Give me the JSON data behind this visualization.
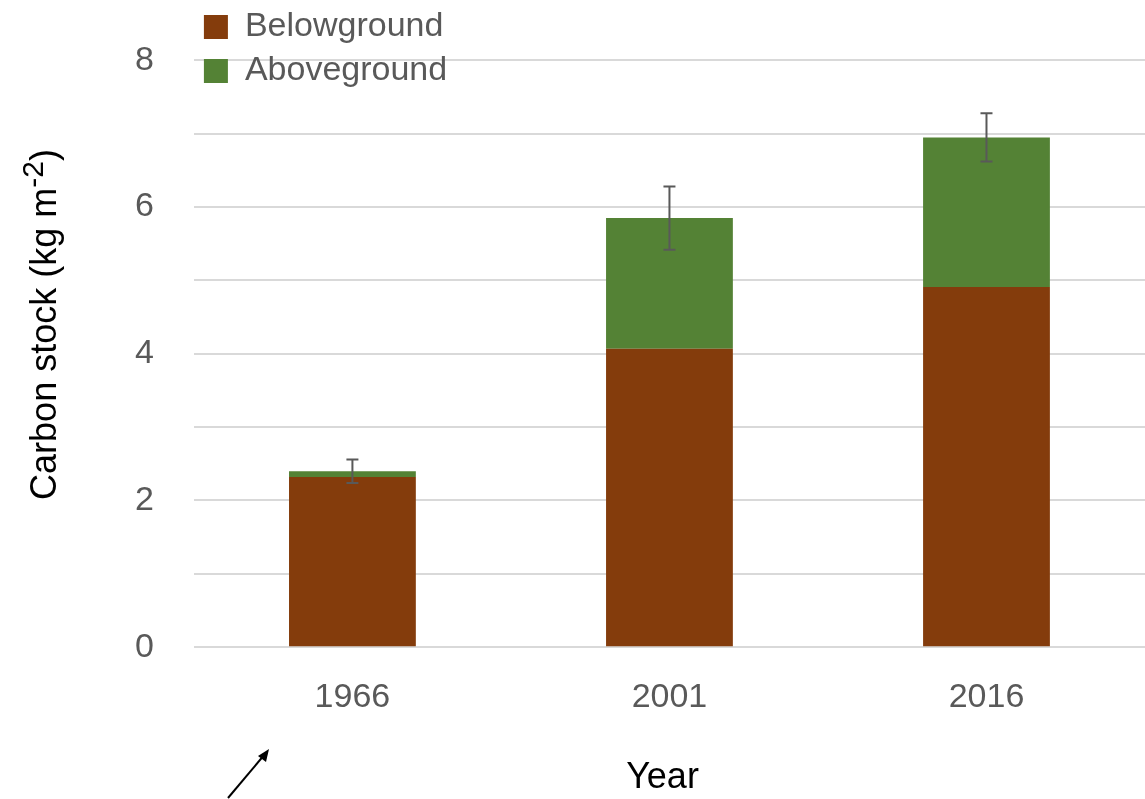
{
  "chart_data": {
    "type": "bar",
    "stacked": true,
    "xlabel": "Year",
    "ylabel": "Carbon stock (kg m$^{-2}$)",
    "categories": [
      "1966",
      "2001",
      "2016"
    ],
    "series": [
      {
        "name": "Belowground",
        "color": "#843c0c",
        "values": [
          2.32,
          4.07,
          4.91
        ]
      },
      {
        "name": "Aboveground",
        "color": "#548235",
        "values": [
          0.08,
          1.78,
          2.04
        ],
        "errors": [
          0.16,
          0.43,
          0.33
        ]
      }
    ],
    "ylim": [
      0,
      8
    ],
    "yticks": [
      0,
      {
        "value": 1,
        "label": null
      },
      2,
      {
        "value": 3,
        "label": null
      },
      4,
      {
        "value": 5,
        "label": null
      },
      6,
      {
        "value": 7,
        "label": null
      },
      8
    ],
    "grid": "y",
    "legend": "top left"
  }
}
